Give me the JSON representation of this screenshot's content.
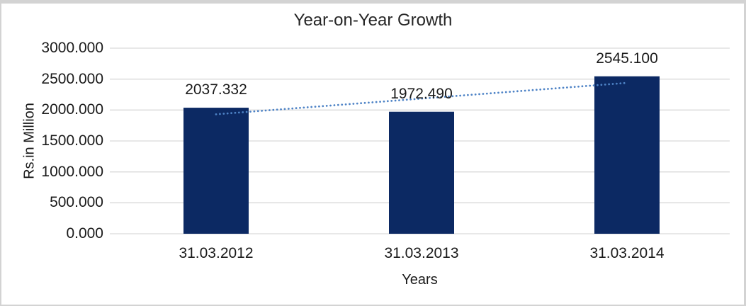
{
  "chart_data": {
    "type": "bar",
    "title": "Year-on-Year Growth",
    "xlabel": "Years",
    "ylabel": "Rs.in Million",
    "categories": [
      "31.03.2012",
      "31.03.2013",
      "31.03.2014"
    ],
    "values": [
      2037.332,
      1972.49,
      2545.1
    ],
    "value_labels": [
      "2037.332",
      "1972.490",
      "2545.100"
    ],
    "yticks": [
      "3000.000",
      "2500.000",
      "2000.000",
      "1500.000",
      "1000.000",
      "500.000",
      "0.000"
    ],
    "ylim": [
      0,
      3000
    ],
    "grid": "horizontal",
    "legend_position": "none",
    "bar_color": "#0c2963",
    "gridline_color": "#d9d9d9",
    "frame_color": "#d3d3d3",
    "text_color": "#1a1a1a",
    "trendline": {
      "type": "linear",
      "style": "dotted",
      "color": "#4e83c6"
    }
  }
}
